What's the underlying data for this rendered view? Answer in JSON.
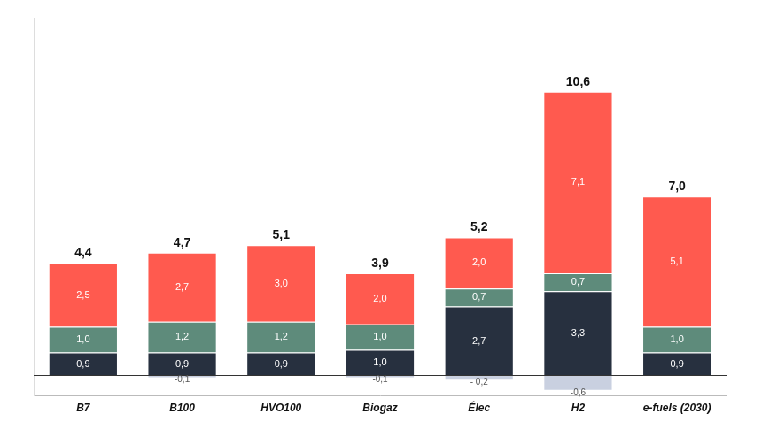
{
  "chart_data": {
    "type": "bar",
    "stacked": true,
    "data_labels": true,
    "grid": false,
    "tick_labels": "x",
    "categories": [
      "B7",
      "B100",
      "HVO100",
      "Biogaz",
      "Élec",
      "H2",
      "e-fuels (2030)"
    ],
    "ylim": [
      -0.8,
      14
    ],
    "series": [
      {
        "color": "#c9d0e0",
        "values": [
          null,
          -0.1,
          null,
          -0.1,
          -0.2,
          -0.6,
          null
        ],
        "value_labels": [
          null,
          "-0,1",
          null,
          "-0,1",
          "- 0,2",
          "-0,6",
          null
        ]
      },
      {
        "color": "#27303f",
        "values": [
          0.9,
          0.9,
          0.9,
          1.0,
          2.7,
          3.3,
          0.9
        ],
        "value_labels": [
          "0,9",
          "0,9",
          "0,9",
          "1,0",
          "2,7",
          "3,3",
          "0,9"
        ]
      },
      {
        "color": "#5e8b7b",
        "values": [
          1.0,
          1.2,
          1.2,
          1.0,
          0.7,
          0.7,
          1.0
        ],
        "value_labels": [
          "1,0",
          "1,2",
          "1,2",
          "1,0",
          "0,7",
          "0,7",
          "1,0"
        ]
      },
      {
        "color": "#ff5a4f",
        "values": [
          2.5,
          2.7,
          3.0,
          2.0,
          2.0,
          7.1,
          5.1
        ],
        "value_labels": [
          "2,5",
          "2,7",
          "3,0",
          "2,0",
          "2,0",
          "7,1",
          "5,1"
        ]
      }
    ],
    "totals": [
      4.4,
      4.7,
      5.1,
      3.9,
      5.2,
      10.6,
      7.0
    ],
    "total_labels": [
      "4,4",
      "4,7",
      "5,1",
      "3,9",
      "5,2",
      "10,6",
      "7,0"
    ]
  }
}
